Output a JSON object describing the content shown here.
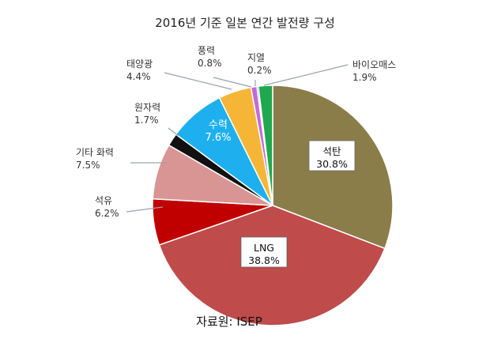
{
  "chart_data": {
    "type": "pie",
    "title": "2016년 기준 일본 연간 발전량 구성",
    "source": "자료원: ISEP",
    "slices": [
      {
        "name": "석탄",
        "label": "30.8%",
        "value": 30.8,
        "color": "#8b7d4a"
      },
      {
        "name": "LNG",
        "label": "38.8%",
        "value": 38.8,
        "color": "#bf4b4b"
      },
      {
        "name": "석유",
        "label": "6.2%",
        "value": 6.2,
        "color": "#c00000"
      },
      {
        "name": "기타 화력",
        "label": "7.5%",
        "value": 7.5,
        "color": "#d99594"
      },
      {
        "name": "원자력",
        "label": "1.7%",
        "value": 1.7,
        "color": "#111111"
      },
      {
        "name": "수력",
        "label": "7.6%",
        "value": 7.6,
        "color": "#1eb0ee"
      },
      {
        "name": "태양광",
        "label": "4.4%",
        "value": 4.4,
        "color": "#f5b638"
      },
      {
        "name": "풍력",
        "label": "0.8%",
        "value": 0.8,
        "color": "#c46ad6"
      },
      {
        "name": "지열",
        "label": "0.2%",
        "value": 0.2,
        "color": "#2d4f9c"
      },
      {
        "name": "바이오매스",
        "label": "1.9%",
        "value": 1.9,
        "color": "#1fa84f"
      }
    ]
  }
}
